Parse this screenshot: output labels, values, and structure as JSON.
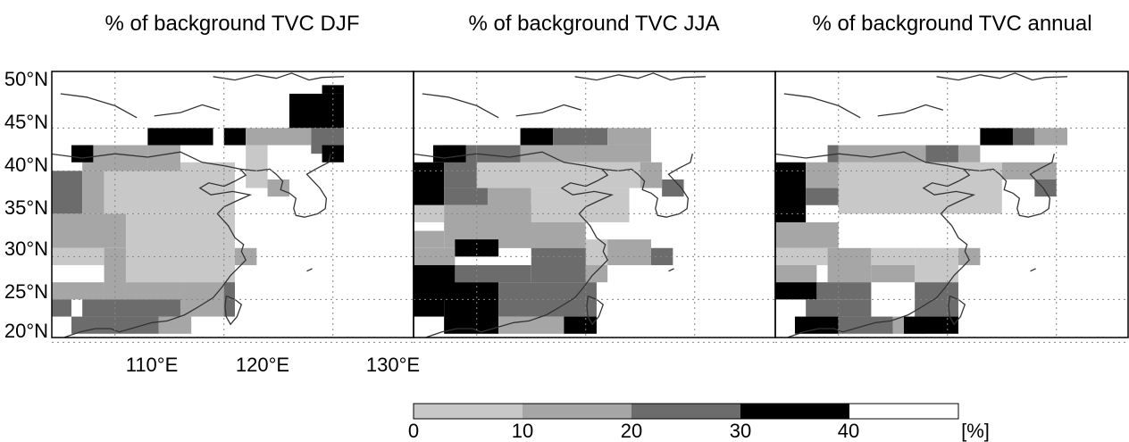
{
  "figure": {
    "panels": [
      {
        "title": "% of background TVC DJF",
        "grid": [
          [
            "",
            "",
            "",
            "",
            "",
            "",
            "",
            "",
            "",
            "",
            "",
            "",
            "",
            "",
            "",
            "",
            "",
            "",
            "",
            "",
            "",
            "",
            "",
            "",
            "",
            "",
            "4",
            "4",
            "4",
            "4",
            "4",
            "4",
            "4"
          ],
          [
            "",
            "",
            "",
            "",
            "",
            "",
            "",
            "",
            "",
            "",
            "",
            "",
            "",
            "",
            "",
            "",
            "",
            "",
            "",
            "",
            "",
            "",
            "",
            "",
            "",
            "",
            "4",
            "4",
            "4",
            "4",
            "4",
            "4",
            "4"
          ],
          [
            "",
            "",
            "",
            "",
            "",
            "",
            "",
            "",
            "",
            "",
            "",
            "",
            "",
            "",
            "",
            "",
            "",
            "",
            "",
            "",
            "",
            "",
            "",
            "",
            "",
            "",
            "",
            "",
            "",
            "4",
            "4",
            "4",
            "4"
          ],
          [
            "",
            "",
            "",
            "",
            "",
            "",
            "",
            "",
            "",
            "",
            "",
            "",
            "",
            "",
            "",
            "",
            "",
            "",
            "",
            "",
            "",
            "",
            "",
            "",
            "",
            "",
            "",
            "",
            "",
            "4",
            "4",
            "4",
            "4"
          ],
          [
            "",
            "",
            "",
            "",
            "",
            "",
            "",
            "",
            "",
            "",
            "",
            "",
            "",
            "",
            "",
            "",
            "4",
            "4",
            "4",
            "4",
            "4",
            "4",
            "",
            "",
            "",
            "",
            "",
            "",
            "",
            "",
            "",
            "",
            ""
          ],
          [
            "",
            "",
            "",
            "",
            "",
            "",
            "",
            "",
            "",
            "",
            "",
            "",
            "",
            "",
            "",
            "",
            "",
            "",
            "",
            "",
            "",
            "",
            "",
            "",
            "",
            "",
            "",
            "",
            "",
            "",
            "",
            "",
            ""
          ],
          [
            "",
            "",
            "",
            "",
            "",
            "",
            "",
            "",
            "",
            "",
            "",
            "",
            "",
            "",
            "",
            "",
            "",
            "",
            "",
            "",
            "",
            "",
            "",
            "",
            "",
            "",
            "",
            "",
            "",
            "",
            "",
            "",
            ""
          ],
          [
            "",
            "",
            "",
            "",
            "",
            "",
            "",
            "",
            "",
            "",
            "",
            "",
            "",
            "",
            "",
            "",
            "",
            "",
            "",
            "",
            "",
            "",
            "",
            "",
            "",
            "",
            "",
            "",
            "",
            "",
            "",
            "",
            ""
          ],
          [
            "",
            "",
            "",
            "",
            "",
            "",
            "",
            "",
            "",
            "",
            "",
            "",
            "",
            "",
            "",
            "",
            "",
            "",
            "",
            "",
            "",
            "",
            "",
            "",
            "",
            "",
            "",
            "",
            "",
            "",
            "",
            "",
            ""
          ],
          [
            "",
            "",
            "",
            "",
            "",
            "",
            "",
            "",
            "",
            "",
            "",
            "",
            "",
            "",
            "",
            "",
            "",
            "",
            "",
            "",
            "",
            "",
            "",
            "",
            "",
            "",
            "",
            "",
            "",
            "",
            "",
            "",
            ""
          ],
          [
            "",
            "",
            "",
            "",
            "",
            "",
            "",
            "",
            "",
            "",
            "",
            "",
            "",
            "",
            "",
            "",
            "",
            "",
            "",
            "",
            "",
            "",
            "",
            "",
            "",
            "",
            "",
            "",
            "",
            "",
            "",
            "",
            ""
          ],
          [
            "",
            "",
            "",
            "",
            "",
            "",
            "",
            "",
            "",
            "",
            "",
            "",
            "",
            "",
            "",
            "",
            "",
            "",
            "",
            "",
            "",
            "",
            "",
            "",
            "",
            "",
            "",
            "",
            "",
            "",
            "",
            "",
            ""
          ]
        ]
      },
      {
        "title": "% of background TVC JJA"
      },
      {
        "title": "% of background TVC annual"
      }
    ],
    "lat_ticks": [
      "50°N",
      "45°N",
      "40°N",
      "35°N",
      "30°N",
      "25°N",
      "20°N"
    ],
    "lon_ticks": [
      "110°E",
      "120°E",
      "130°E"
    ],
    "colorbar": {
      "ticks": [
        "0",
        "10",
        "20",
        "30",
        "40"
      ],
      "unit": "[%]",
      "bins": [
        {
          "range": "0-10",
          "color": "#c8c8c8"
        },
        {
          "range": "10-20",
          "color": "#a6a6a6"
        },
        {
          "range": "20-30",
          "color": "#6c6c6c"
        },
        {
          "range": "30-40",
          "color": "#000000"
        },
        {
          "range": "40+",
          "color": "#ffffff"
        }
      ]
    }
  }
}
